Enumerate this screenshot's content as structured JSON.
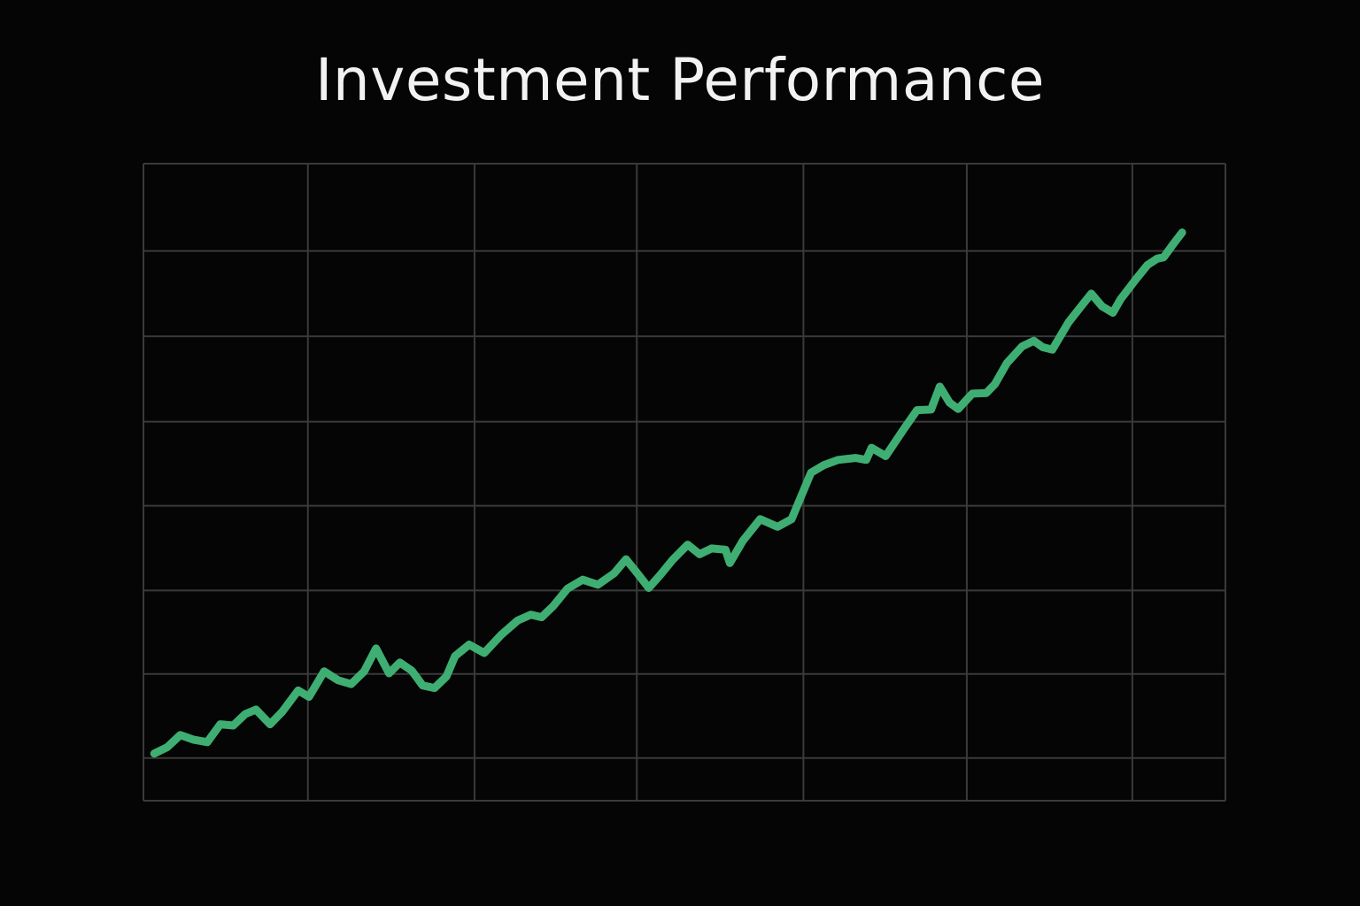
{
  "colors": {
    "background": "#050505",
    "title": "#f2f2f2",
    "grid": "#3a3a3a",
    "line": "#3fae72"
  },
  "chart_data": {
    "type": "line",
    "title": "Investment Performance",
    "xlabel": "",
    "ylabel": "",
    "grid": true,
    "legend": "none",
    "xlim": [
      0,
      100
    ],
    "ylim": [
      0,
      100
    ],
    "x_gridlines": [
      0,
      15.2,
      30.6,
      45.6,
      61,
      76.1,
      91.4,
      100
    ],
    "y_gridlines": [
      0,
      6.7,
      19.9,
      33.0,
      46.3,
      59.5,
      72.9,
      86.3,
      100
    ],
    "series": [
      {
        "values": [
          [
            1.0,
            7.4
          ],
          [
            2.2,
            8.4
          ],
          [
            3.4,
            10.3
          ],
          [
            4.6,
            9.6
          ],
          [
            5.9,
            9.2
          ],
          [
            7.1,
            12.0
          ],
          [
            8.3,
            11.8
          ],
          [
            9.4,
            13.6
          ],
          [
            10.4,
            14.3
          ],
          [
            11.7,
            12.0
          ],
          [
            12.8,
            13.9
          ],
          [
            14.3,
            17.3
          ],
          [
            15.3,
            16.3
          ],
          [
            16.7,
            20.3
          ],
          [
            18.0,
            18.9
          ],
          [
            19.2,
            18.3
          ],
          [
            20.4,
            20.3
          ],
          [
            21.5,
            23.9
          ],
          [
            22.7,
            20.0
          ],
          [
            23.7,
            21.7
          ],
          [
            24.8,
            20.4
          ],
          [
            25.8,
            18.1
          ],
          [
            26.9,
            17.7
          ],
          [
            28.0,
            19.5
          ],
          [
            28.8,
            22.7
          ],
          [
            30.1,
            24.5
          ],
          [
            31.5,
            23.2
          ],
          [
            33.1,
            26.1
          ],
          [
            34.6,
            28.3
          ],
          [
            35.8,
            29.2
          ],
          [
            36.8,
            28.8
          ],
          [
            37.9,
            30.6
          ],
          [
            39.2,
            33.3
          ],
          [
            40.6,
            34.7
          ],
          [
            42.0,
            33.9
          ],
          [
            43.5,
            35.7
          ],
          [
            44.6,
            37.9
          ],
          [
            45.6,
            35.8
          ],
          [
            46.7,
            33.4
          ],
          [
            47.8,
            35.5
          ],
          [
            48.9,
            37.8
          ],
          [
            50.3,
            40.2
          ],
          [
            51.4,
            38.7
          ],
          [
            52.5,
            39.6
          ],
          [
            53.8,
            39.4
          ],
          [
            54.2,
            37.3
          ],
          [
            55.4,
            40.8
          ],
          [
            57.0,
            44.2
          ],
          [
            58.6,
            43.0
          ],
          [
            59.9,
            44.2
          ],
          [
            61.7,
            51.5
          ],
          [
            62.9,
            52.7
          ],
          [
            64.2,
            53.5
          ],
          [
            65.8,
            53.8
          ],
          [
            66.8,
            53.5
          ],
          [
            67.3,
            55.4
          ],
          [
            68.6,
            54.1
          ],
          [
            70.3,
            58.4
          ],
          [
            71.5,
            61.3
          ],
          [
            72.8,
            61.4
          ],
          [
            73.6,
            65.0
          ],
          [
            74.5,
            62.5
          ],
          [
            75.3,
            61.5
          ],
          [
            76.6,
            63.9
          ],
          [
            77.9,
            64.0
          ],
          [
            78.7,
            65.4
          ],
          [
            79.8,
            68.7
          ],
          [
            81.2,
            71.3
          ],
          [
            82.3,
            72.2
          ],
          [
            83.1,
            71.2
          ],
          [
            84.0,
            70.8
          ],
          [
            85.5,
            75.1
          ],
          [
            86.7,
            77.7
          ],
          [
            87.6,
            79.6
          ],
          [
            88.6,
            77.6
          ],
          [
            89.6,
            76.6
          ],
          [
            90.3,
            78.7
          ],
          [
            91.7,
            81.8
          ],
          [
            92.8,
            84.1
          ],
          [
            93.7,
            85.1
          ],
          [
            94.3,
            85.3
          ],
          [
            95.1,
            87.2
          ],
          [
            96.0,
            89.2
          ]
        ]
      }
    ]
  }
}
